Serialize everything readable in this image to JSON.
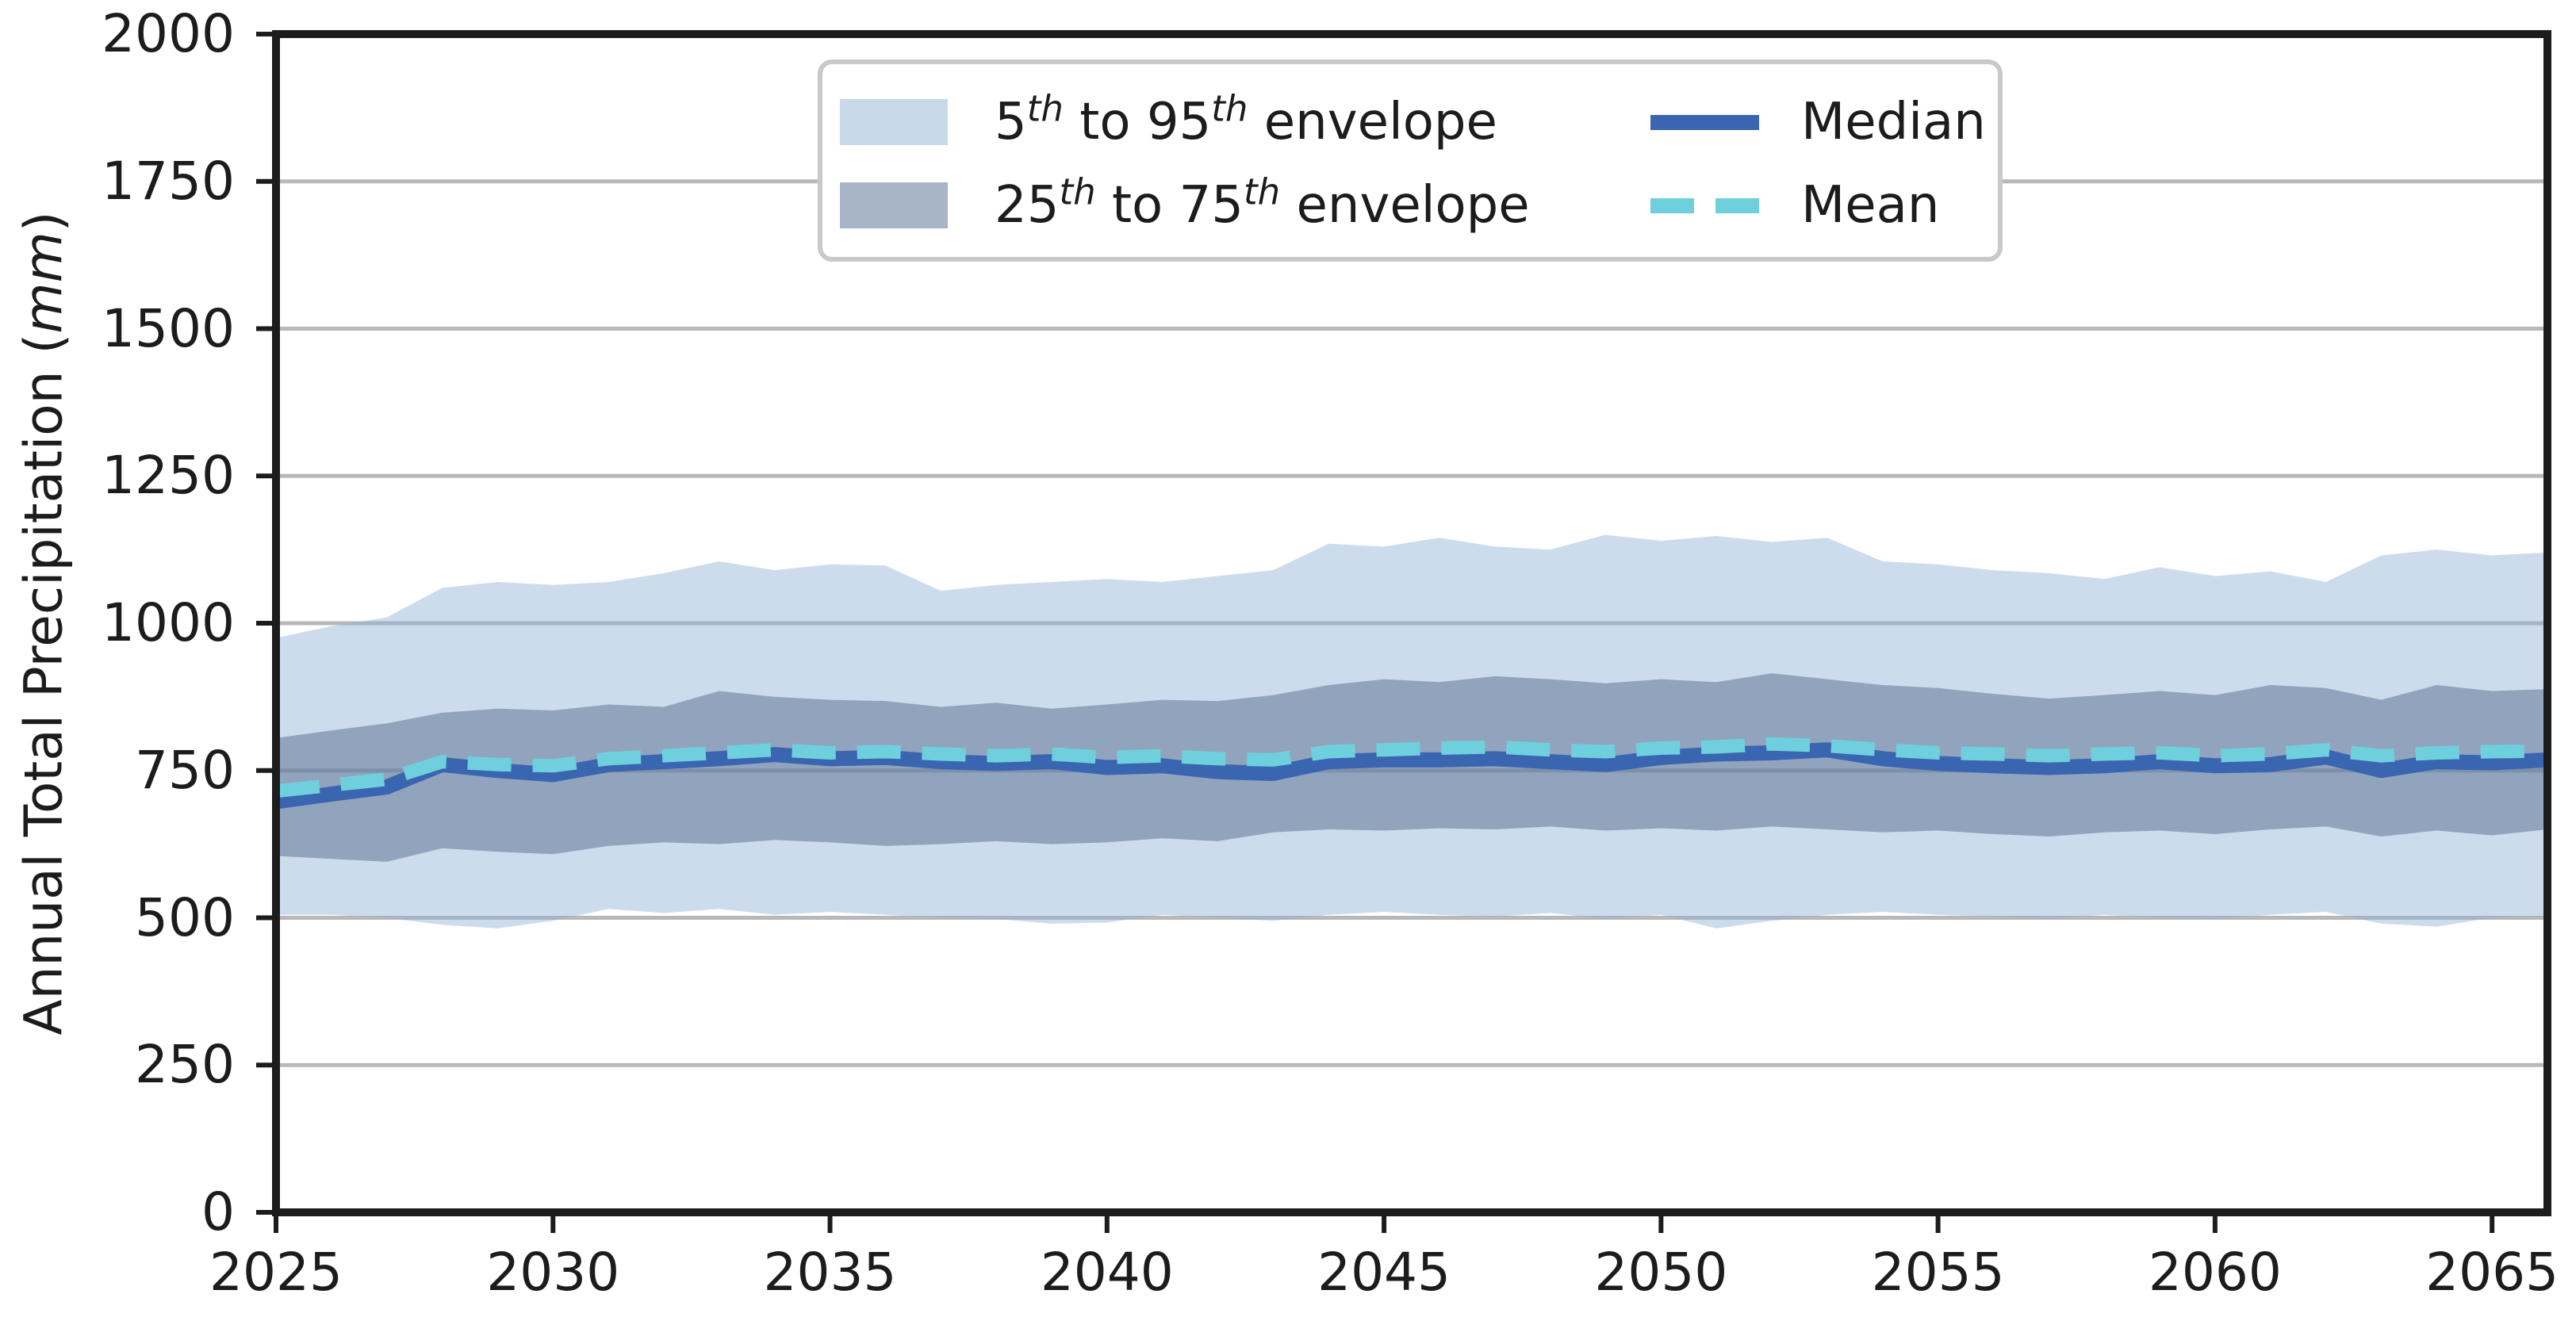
{
  "page": {
    "background": "#ffffff"
  },
  "chart_data": {
    "type": "area",
    "title": "",
    "xlabel": "",
    "ylabel": "Annual Total Precipitation (mm)",
    "ylabel_parts": {
      "pre": "Annual Total Precipitation (",
      "unit_italic": "mm",
      "post": ")"
    },
    "x": [
      2025,
      2026,
      2027,
      2028,
      2029,
      2030,
      2031,
      2032,
      2033,
      2034,
      2035,
      2036,
      2037,
      2038,
      2039,
      2040,
      2041,
      2042,
      2043,
      2044,
      2045,
      2046,
      2047,
      2048,
      2049,
      2050,
      2051,
      2052,
      2053,
      2054,
      2055,
      2056,
      2057,
      2058,
      2059,
      2060,
      2061,
      2062,
      2063,
      2064,
      2065,
      2066
    ],
    "xlim": [
      2025,
      2066
    ],
    "ylim": [
      0,
      2000
    ],
    "xticks": [
      2025,
      2030,
      2035,
      2040,
      2045,
      2050,
      2055,
      2060,
      2065
    ],
    "yticks": [
      0,
      250,
      500,
      750,
      1000,
      1250,
      1500,
      1750,
      2000
    ],
    "grid": "horizontal",
    "grid_color": "#b8b8b8",
    "axis_color": "#1c1c1c",
    "series": [
      {
        "name": "5th to 95th envelope",
        "type": "band",
        "color": "#ccdcec",
        "fill_rgba": "rgba(142,177,213,0.45)",
        "upper": [
          975,
          995,
          1010,
          1060,
          1070,
          1065,
          1070,
          1085,
          1105,
          1090,
          1100,
          1098,
          1055,
          1065,
          1070,
          1075,
          1070,
          1080,
          1090,
          1135,
          1130,
          1145,
          1130,
          1125,
          1150,
          1140,
          1148,
          1138,
          1145,
          1105,
          1100,
          1090,
          1085,
          1075,
          1095,
          1080,
          1088,
          1070,
          1115,
          1125,
          1115,
          1120
        ],
        "lower": [
          505,
          505,
          500,
          488,
          482,
          495,
          515,
          508,
          515,
          505,
          510,
          505,
          500,
          498,
          490,
          492,
          505,
          500,
          495,
          505,
          510,
          505,
          502,
          508,
          498,
          505,
          482,
          495,
          505,
          510,
          505,
          502,
          498,
          505,
          500,
          498,
          505,
          510,
          490,
          485,
          500,
          502
        ]
      },
      {
        "name": "25th to 75th envelope",
        "type": "band",
        "color": "#92a4bd",
        "fill_rgba": "rgba(88,108,142,0.5)",
        "upper": [
          805,
          818,
          830,
          848,
          855,
          852,
          862,
          858,
          885,
          875,
          870,
          868,
          858,
          865,
          855,
          862,
          870,
          868,
          878,
          895,
          905,
          900,
          910,
          905,
          898,
          905,
          900,
          915,
          905,
          895,
          890,
          880,
          872,
          878,
          885,
          878,
          895,
          890,
          870,
          895,
          885,
          888
        ],
        "lower": [
          605,
          600,
          595,
          618,
          612,
          608,
          622,
          628,
          625,
          632,
          628,
          622,
          625,
          630,
          625,
          628,
          635,
          630,
          645,
          650,
          648,
          652,
          650,
          655,
          648,
          652,
          648,
          655,
          650,
          645,
          648,
          642,
          638,
          645,
          648,
          642,
          650,
          655,
          638,
          648,
          640,
          650
        ]
      },
      {
        "name": "Median",
        "type": "line",
        "line_style": "solid",
        "color": "#3a65b0",
        "values": [
          697,
          710,
          722,
          760,
          750,
          743,
          760,
          765,
          770,
          777,
          770,
          772,
          765,
          762,
          765,
          755,
          758,
          748,
          745,
          765,
          768,
          768,
          770,
          765,
          760,
          772,
          778,
          780,
          785,
          770,
          762,
          758,
          755,
          758,
          765,
          758,
          760,
          773,
          750,
          765,
          763,
          768
        ]
      },
      {
        "name": "Mean",
        "type": "line",
        "line_style": "dashed",
        "color": "#6fd0dd",
        "values": [
          715,
          725,
          735,
          765,
          760,
          758,
          770,
          775,
          780,
          785,
          780,
          782,
          778,
          775,
          778,
          772,
          775,
          770,
          768,
          782,
          785,
          788,
          790,
          785,
          782,
          788,
          790,
          795,
          792,
          785,
          780,
          778,
          775,
          778,
          780,
          775,
          778,
          785,
          775,
          780,
          782,
          783
        ]
      }
    ],
    "legend": {
      "position": "upper center",
      "entries": [
        {
          "key": "p5p95",
          "swatch": "patch",
          "color": "#c9d9e9",
          "label_parts": [
            {
              "t": "5"
            },
            {
              "sup": "th"
            },
            {
              "t": " to 95"
            },
            {
              "sup": "th"
            },
            {
              "t": " envelope"
            }
          ]
        },
        {
          "key": "p25p75",
          "swatch": "patch",
          "color": "#a8b4c7",
          "label_parts": [
            {
              "t": "25"
            },
            {
              "sup": "th"
            },
            {
              "t": " to 75"
            },
            {
              "sup": "th"
            },
            {
              "t": " envelope"
            }
          ]
        },
        {
          "key": "median",
          "swatch": "line-solid",
          "color": "#3a65b0",
          "label_parts": [
            {
              "t": "Median"
            }
          ]
        },
        {
          "key": "mean",
          "swatch": "line-dashed",
          "color": "#6fd0dd",
          "label_parts": [
            {
              "t": "Mean"
            }
          ]
        }
      ]
    }
  }
}
